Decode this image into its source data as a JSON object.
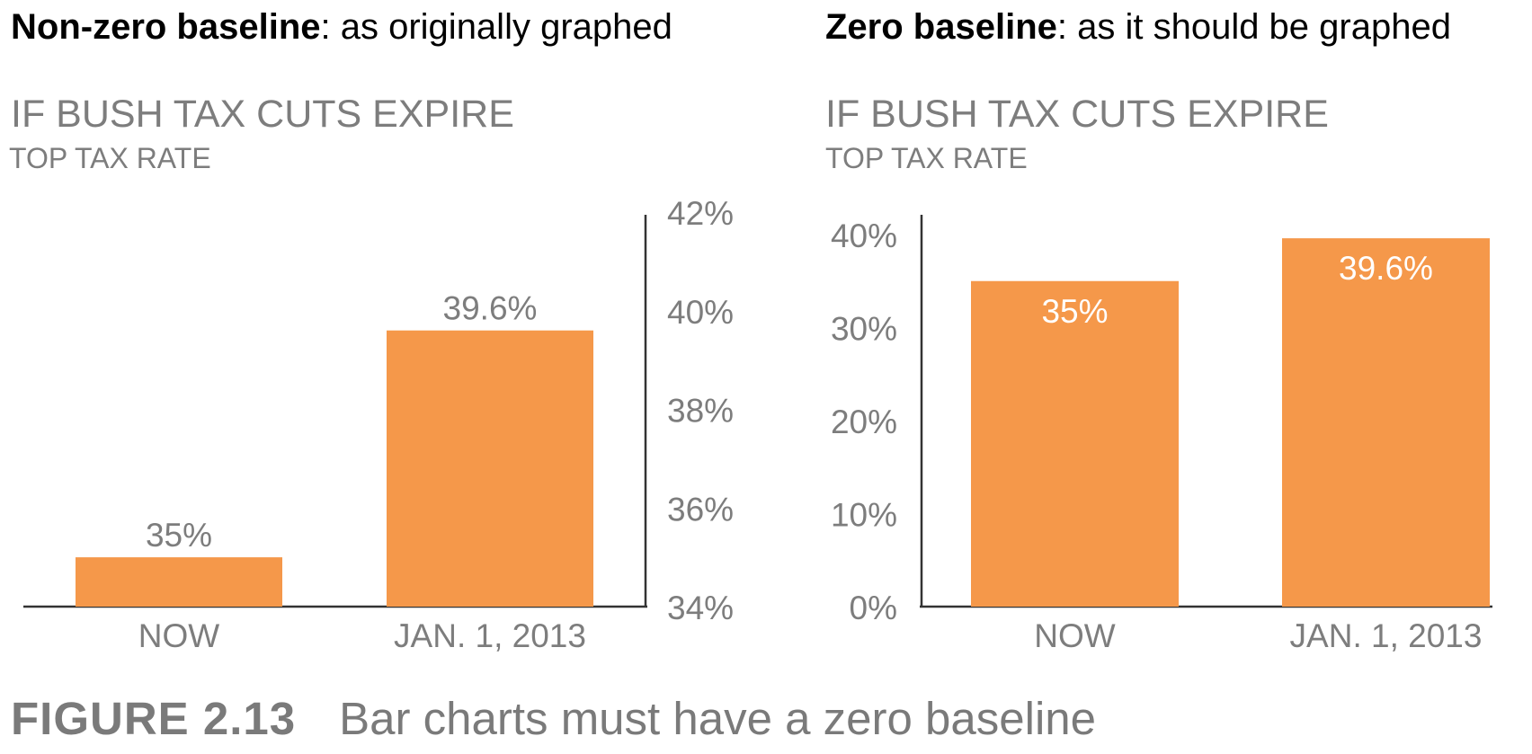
{
  "panels": [
    {
      "heading_bold": "Non-zero baseline",
      "heading_rest": ": as originally graphed",
      "title": "IF BUSH TAX CUTS EXPIRE",
      "subtitle": "TOP TAX RATE"
    },
    {
      "heading_bold": "Zero baseline",
      "heading_rest": ": as it should be graphed",
      "title": "IF BUSH TAX CUTS EXPIRE",
      "subtitle": "TOP TAX RATE"
    }
  ],
  "caption": {
    "label": "FIGURE 2.13",
    "text": "Bar charts must have a zero baseline"
  },
  "colors": {
    "bar": "#f5984a",
    "text_gray": "#7d7d7d",
    "axis": "#333333"
  },
  "chart_data": [
    {
      "type": "bar",
      "title": "IF BUSH TAX CUTS EXPIRE",
      "subtitle": "TOP TAX RATE",
      "categories": [
        "NOW",
        "JAN. 1, 2013"
      ],
      "values": [
        35,
        39.6
      ],
      "value_labels": [
        "35%",
        "39.6%"
      ],
      "ylim": [
        34,
        42
      ],
      "yticks": [
        34,
        36,
        38,
        40,
        42
      ],
      "ytick_labels": [
        "34%",
        "36%",
        "38%",
        "40%",
        "42%"
      ],
      "yaxis_side": "right",
      "data_label_position": "above",
      "grid": false
    },
    {
      "type": "bar",
      "title": "IF BUSH TAX CUTS EXPIRE",
      "subtitle": "TOP TAX RATE",
      "categories": [
        "NOW",
        "JAN. 1, 2013"
      ],
      "values": [
        35,
        39.6
      ],
      "value_labels": [
        "35%",
        "39.6%"
      ],
      "ylim": [
        0,
        40
      ],
      "yticks": [
        0,
        10,
        20,
        30,
        40
      ],
      "ytick_labels": [
        "0%",
        "10%",
        "20%",
        "30%",
        "40%"
      ],
      "yaxis_side": "left",
      "data_label_position": "inside",
      "grid": false
    }
  ]
}
